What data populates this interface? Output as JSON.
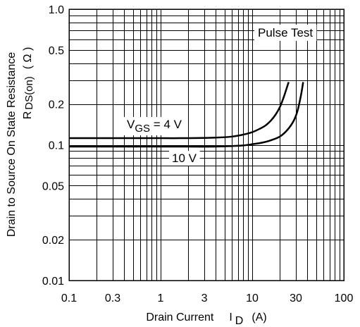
{
  "chart_data": {
    "type": "line",
    "x_scale": "log",
    "y_scale": "log",
    "xlim": [
      0.1,
      100
    ],
    "ylim": [
      0.01,
      1.0
    ],
    "grid": true,
    "x_ticks": [
      "0.1",
      "0.3",
      "1",
      "3",
      "10",
      "30",
      "100"
    ],
    "y_ticks": [
      "1.0",
      "0.5",
      "0.2",
      "0.1",
      "0.05",
      "0.02",
      "0.01"
    ],
    "xlabel": {
      "text": "Drain Current",
      "symbol": "I",
      "subscript": "D",
      "unit": "(A)"
    },
    "ylabel": {
      "line1": "Drain to Source On State Resistance",
      "symbol": "R",
      "subscript": "DS(on)",
      "unit": "( Ω )"
    },
    "annotations": {
      "test_label": "Pulse Test",
      "vgs_4": {
        "symbol": "V",
        "subscript": "GS",
        "value": " = 4 V"
      },
      "vgs_10": "10 V"
    },
    "series": [
      {
        "label": "VGS = 4 V",
        "x": [
          0.1,
          0.5,
          1,
          2,
          4,
          6,
          8,
          10,
          12,
          14,
          16,
          18,
          20,
          22,
          23.5,
          25
        ],
        "y": [
          0.112,
          0.112,
          0.112,
          0.112,
          0.113,
          0.115,
          0.119,
          0.124,
          0.131,
          0.139,
          0.151,
          0.167,
          0.189,
          0.223,
          0.255,
          0.29
        ]
      },
      {
        "label": "VGS = 10 V",
        "x": [
          0.1,
          0.5,
          1,
          2,
          4,
          6,
          8,
          10,
          13,
          16,
          20,
          24,
          28,
          31,
          34,
          36
        ],
        "y": [
          0.097,
          0.097,
          0.097,
          0.097,
          0.097,
          0.098,
          0.099,
          0.101,
          0.104,
          0.108,
          0.115,
          0.128,
          0.148,
          0.175,
          0.23,
          0.29
        ]
      }
    ]
  }
}
